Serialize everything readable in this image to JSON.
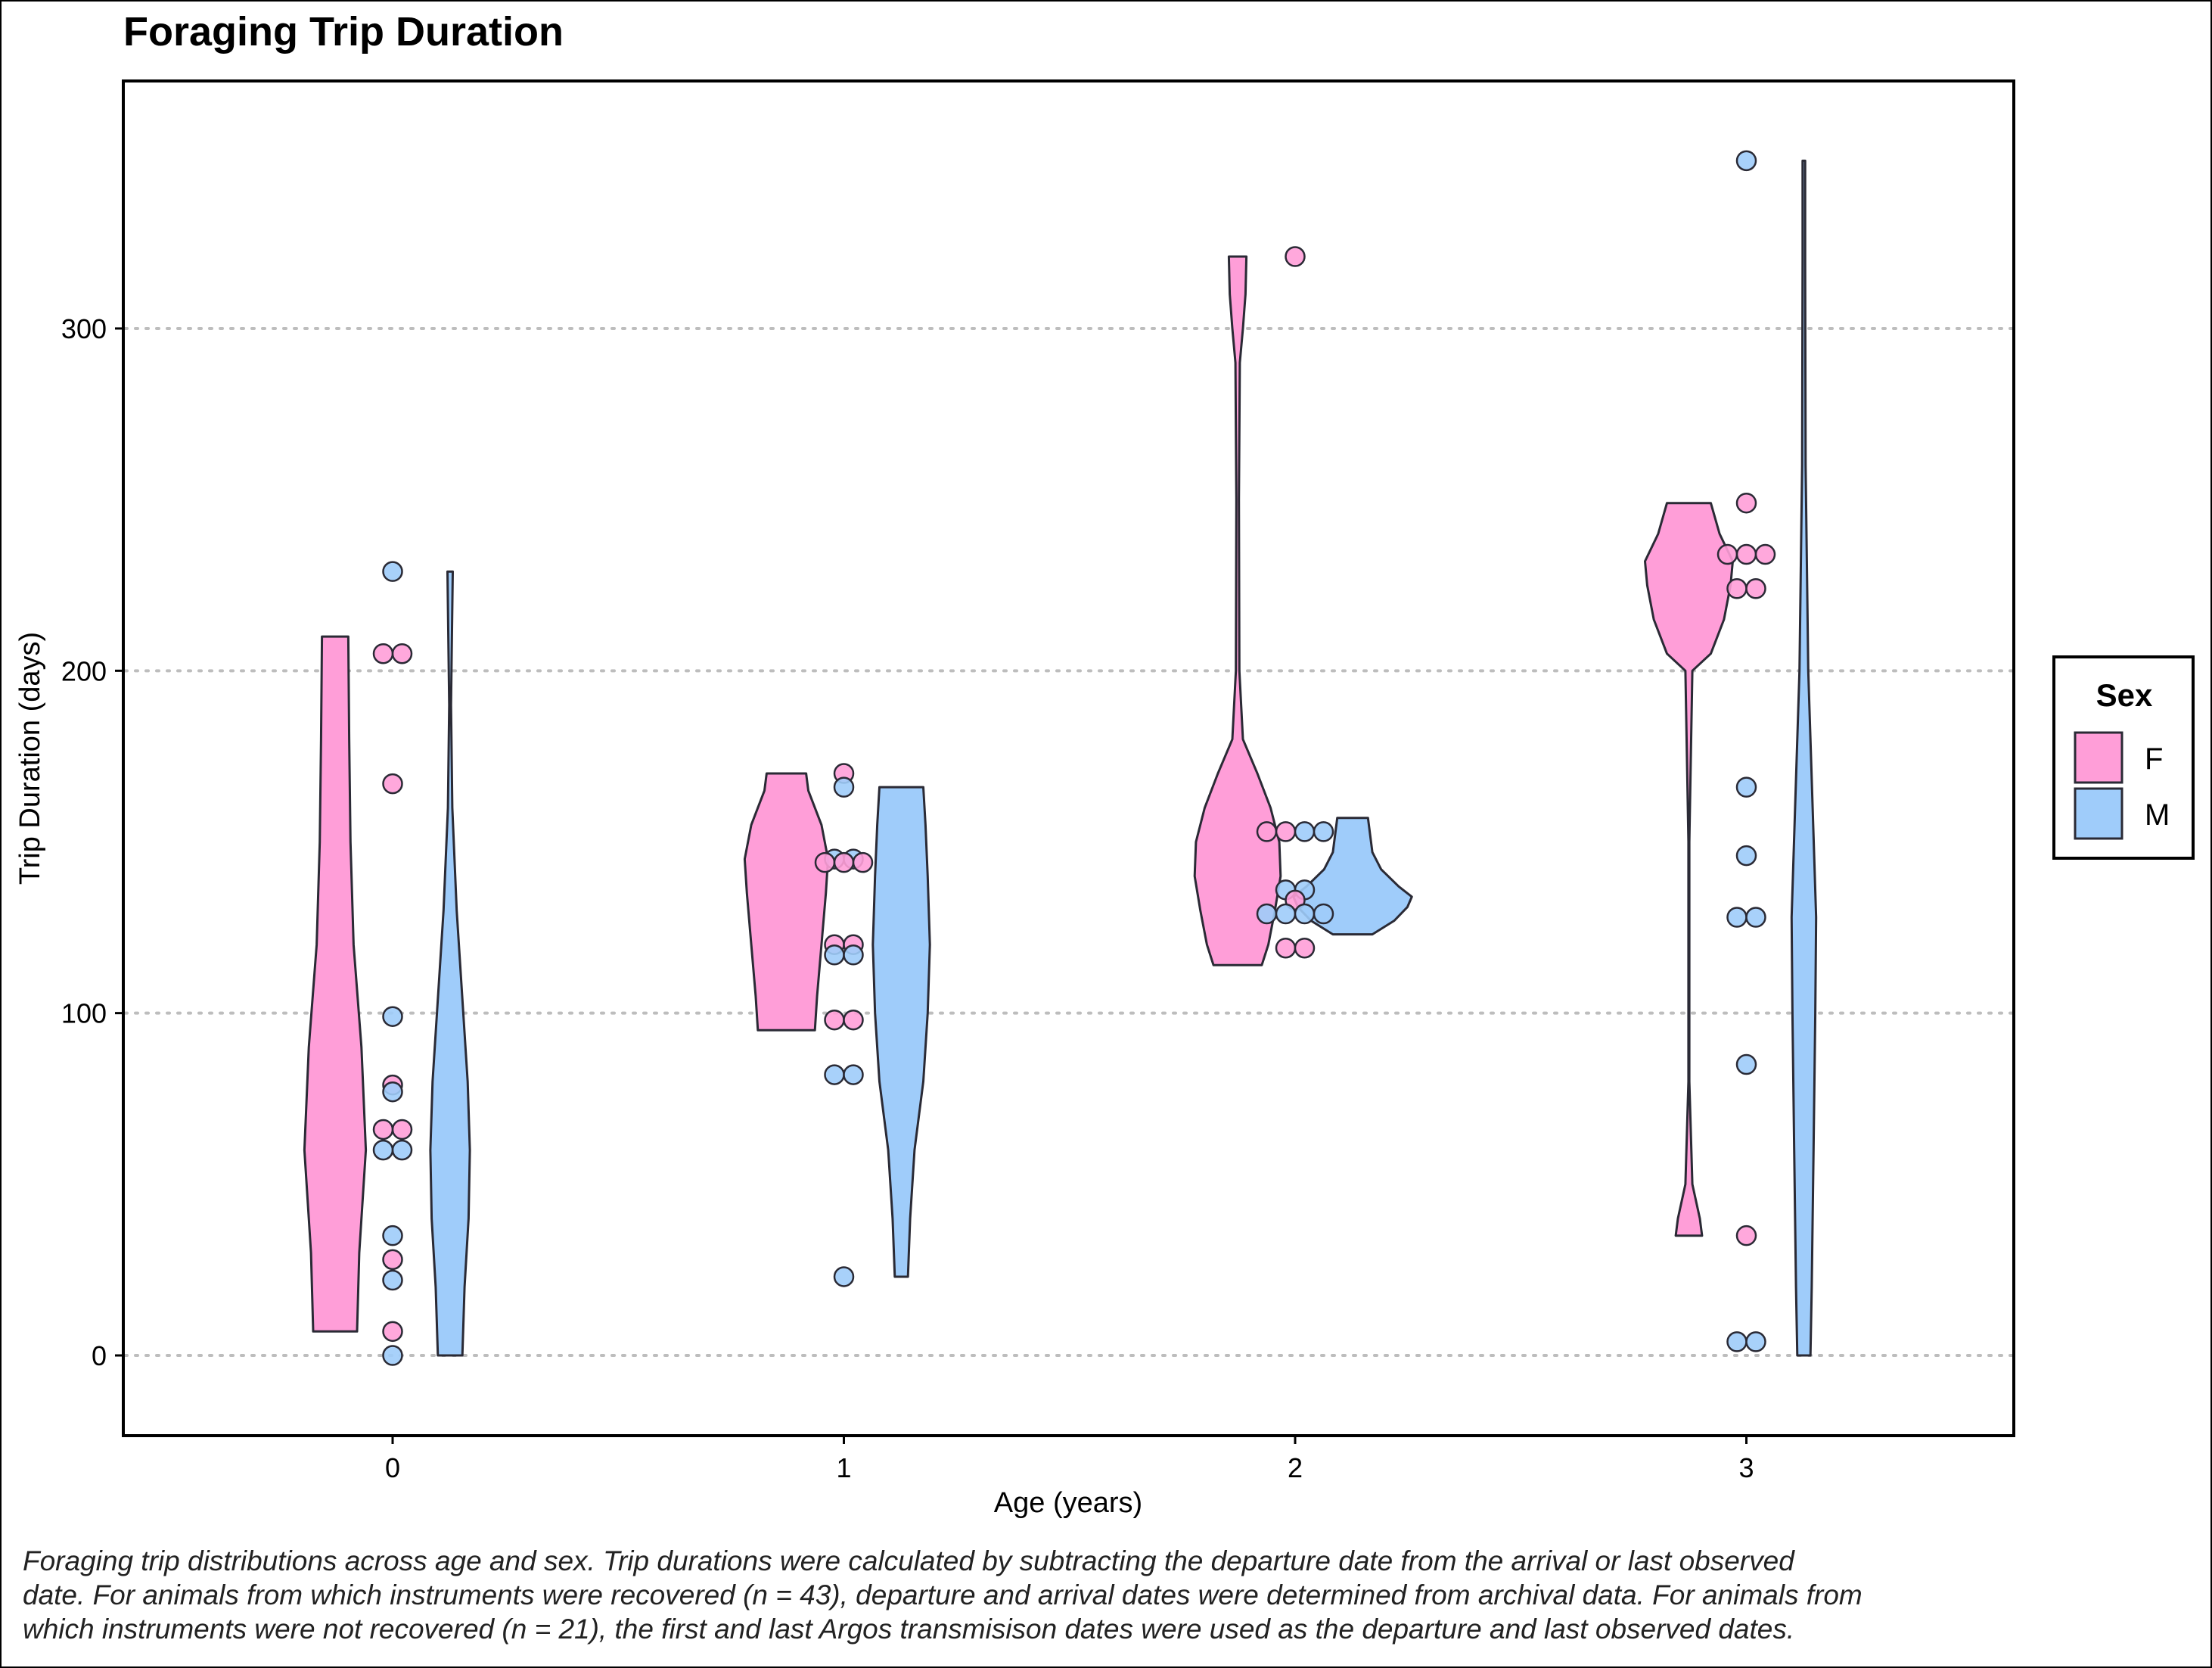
{
  "colors": {
    "F": "#ff9ed8",
    "M": "#9fccfa",
    "outline": "#2a2a35",
    "grid": "#bdbdbd"
  },
  "chart_data": {
    "type": "violin",
    "title": "Foraging Trip Duration",
    "xlabel": "Age (years)",
    "ylabel": "Trip Duration (days)",
    "categories": [
      "0",
      "1",
      "2",
      "3"
    ],
    "ylim": [
      -23,
      372
    ],
    "yticks": [
      0,
      100,
      200,
      300
    ],
    "grid": "horizontal dotted",
    "legend": {
      "title": "Sex",
      "position": "right",
      "entries": [
        "F",
        "M"
      ]
    },
    "series": [
      {
        "name": "F",
        "points": {
          "0": [
            205,
            205,
            167,
            79,
            66,
            66,
            28,
            7
          ],
          "1": [
            170,
            144,
            144,
            144,
            120,
            120,
            98,
            98
          ],
          "2": [
            321,
            153,
            153,
            133,
            119,
            119
          ],
          "3": [
            249,
            234,
            234,
            234,
            224,
            224,
            35
          ]
        },
        "violins": {
          "0": [
            [
              7,
              0.5
            ],
            [
              30,
              0.55
            ],
            [
              60,
              0.7
            ],
            [
              90,
              0.6
            ],
            [
              120,
              0.42
            ],
            [
              150,
              0.35
            ],
            [
              180,
              0.32
            ],
            [
              210,
              0.3
            ]
          ],
          "1": [
            [
              95,
              0.65
            ],
            [
              105,
              0.7
            ],
            [
              120,
              0.8
            ],
            [
              135,
              0.9
            ],
            [
              145,
              0.95
            ],
            [
              155,
              0.8
            ],
            [
              165,
              0.5
            ],
            [
              170,
              0.45
            ]
          ],
          "2": [
            [
              114,
              0.55
            ],
            [
              120,
              0.7
            ],
            [
              130,
              0.85
            ],
            [
              140,
              0.98
            ],
            [
              150,
              0.95
            ],
            [
              160,
              0.75
            ],
            [
              170,
              0.45
            ],
            [
              180,
              0.12
            ],
            [
              200,
              0.04
            ],
            [
              250,
              0.03
            ],
            [
              290,
              0.05
            ],
            [
              300,
              0.12
            ],
            [
              310,
              0.18
            ],
            [
              321,
              0.2
            ]
          ],
          "3": [
            [
              35,
              0.3
            ],
            [
              40,
              0.25
            ],
            [
              50,
              0.08
            ],
            [
              80,
              0.01
            ],
            [
              150,
              0.01
            ],
            [
              200,
              0.08
            ],
            [
              205,
              0.5
            ],
            [
              215,
              0.8
            ],
            [
              225,
              0.95
            ],
            [
              232,
              1.0
            ],
            [
              240,
              0.7
            ],
            [
              249,
              0.5
            ]
          ]
        }
      },
      {
        "name": "M",
        "points": {
          "0": [
            229,
            99,
            77,
            60,
            60,
            35,
            22,
            0
          ],
          "1": [
            166,
            145,
            145,
            117,
            117,
            82,
            82,
            23
          ],
          "2": [
            153,
            153,
            136,
            136,
            129,
            129,
            129,
            129
          ],
          "3": [
            349,
            166,
            146,
            128,
            128,
            85,
            4,
            4
          ]
        },
        "violins": {
          "0": [
            [
              0,
              0.28
            ],
            [
              20,
              0.33
            ],
            [
              40,
              0.42
            ],
            [
              60,
              0.45
            ],
            [
              80,
              0.4
            ],
            [
              100,
              0.3
            ],
            [
              130,
              0.15
            ],
            [
              160,
              0.05
            ],
            [
              190,
              0.02
            ],
            [
              229,
              0.06
            ]
          ],
          "1": [
            [
              23,
              0.15
            ],
            [
              40,
              0.2
            ],
            [
              60,
              0.3
            ],
            [
              80,
              0.5
            ],
            [
              100,
              0.6
            ],
            [
              120,
              0.65
            ],
            [
              140,
              0.6
            ],
            [
              155,
              0.55
            ],
            [
              166,
              0.5
            ]
          ],
          "2": [
            [
              123,
              0.45
            ],
            [
              127,
              0.95
            ],
            [
              131,
              1.25
            ],
            [
              134,
              1.35
            ],
            [
              137,
              1.05
            ],
            [
              142,
              0.65
            ],
            [
              147,
              0.45
            ],
            [
              152,
              0.4
            ],
            [
              157,
              0.35
            ]
          ],
          "3": [
            [
              0,
              0.15
            ],
            [
              20,
              0.18
            ],
            [
              60,
              0.22
            ],
            [
              100,
              0.26
            ],
            [
              128,
              0.28
            ],
            [
              160,
              0.2
            ],
            [
              200,
              0.1
            ],
            [
              260,
              0.04
            ],
            [
              320,
              0.03
            ],
            [
              349,
              0.03
            ]
          ]
        }
      }
    ]
  },
  "caption": {
    "line1": "Foraging trip distributions across age and sex. Trip durations were calculated by subtracting the departure date from the arrival or last observed",
    "line2": "date. For animals from which instruments were recovered (n = 43), departure and arrival dates were determined from archival data. For animals from",
    "line3": "which instruments were not recovered (n = 21), the first and last Argos transmisison dates were used as the departure and last observed dates."
  }
}
